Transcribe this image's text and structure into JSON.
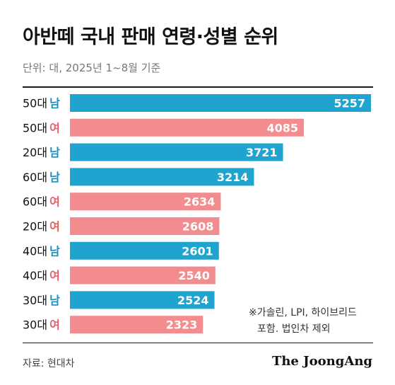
{
  "header": {
    "title": "아반떼 국내 판매 연령·성별 순위",
    "unit": "단위: 대, 2025년 1~8월 기준"
  },
  "colors": {
    "male": "#1fa3cf",
    "female": "#f28c8e",
    "male_label": "#1a90c0",
    "female_label": "#e8606a"
  },
  "chart_data": {
    "type": "bar",
    "orientation": "horizontal",
    "categories": [
      "50대 남",
      "50대 여",
      "20대 남",
      "60대 남",
      "60대 여",
      "20대 여",
      "40대 남",
      "40대 여",
      "30대 남",
      "30대 여"
    ],
    "bars": [
      {
        "age": "50대",
        "gender": "남",
        "value": 5257
      },
      {
        "age": "50대",
        "gender": "여",
        "value": 4085
      },
      {
        "age": "20대",
        "gender": "남",
        "value": 3721
      },
      {
        "age": "60대",
        "gender": "남",
        "value": 3214
      },
      {
        "age": "60대",
        "gender": "여",
        "value": 2634
      },
      {
        "age": "20대",
        "gender": "여",
        "value": 2608
      },
      {
        "age": "40대",
        "gender": "남",
        "value": 2601
      },
      {
        "age": "40대",
        "gender": "여",
        "value": 2540
      },
      {
        "age": "30대",
        "gender": "남",
        "value": 2524
      },
      {
        "age": "30대",
        "gender": "여",
        "value": 2323
      }
    ],
    "xlim": [
      0,
      5257
    ],
    "grid": false,
    "title": "아반떼 국내 판매 연령·성별 순위"
  },
  "note": {
    "line1": "※가솔린, LPI, 하이브리드",
    "line2": "포함. 법인차 제외"
  },
  "footer": {
    "source": "자료: 현대차",
    "logo": "The JoongAng"
  }
}
